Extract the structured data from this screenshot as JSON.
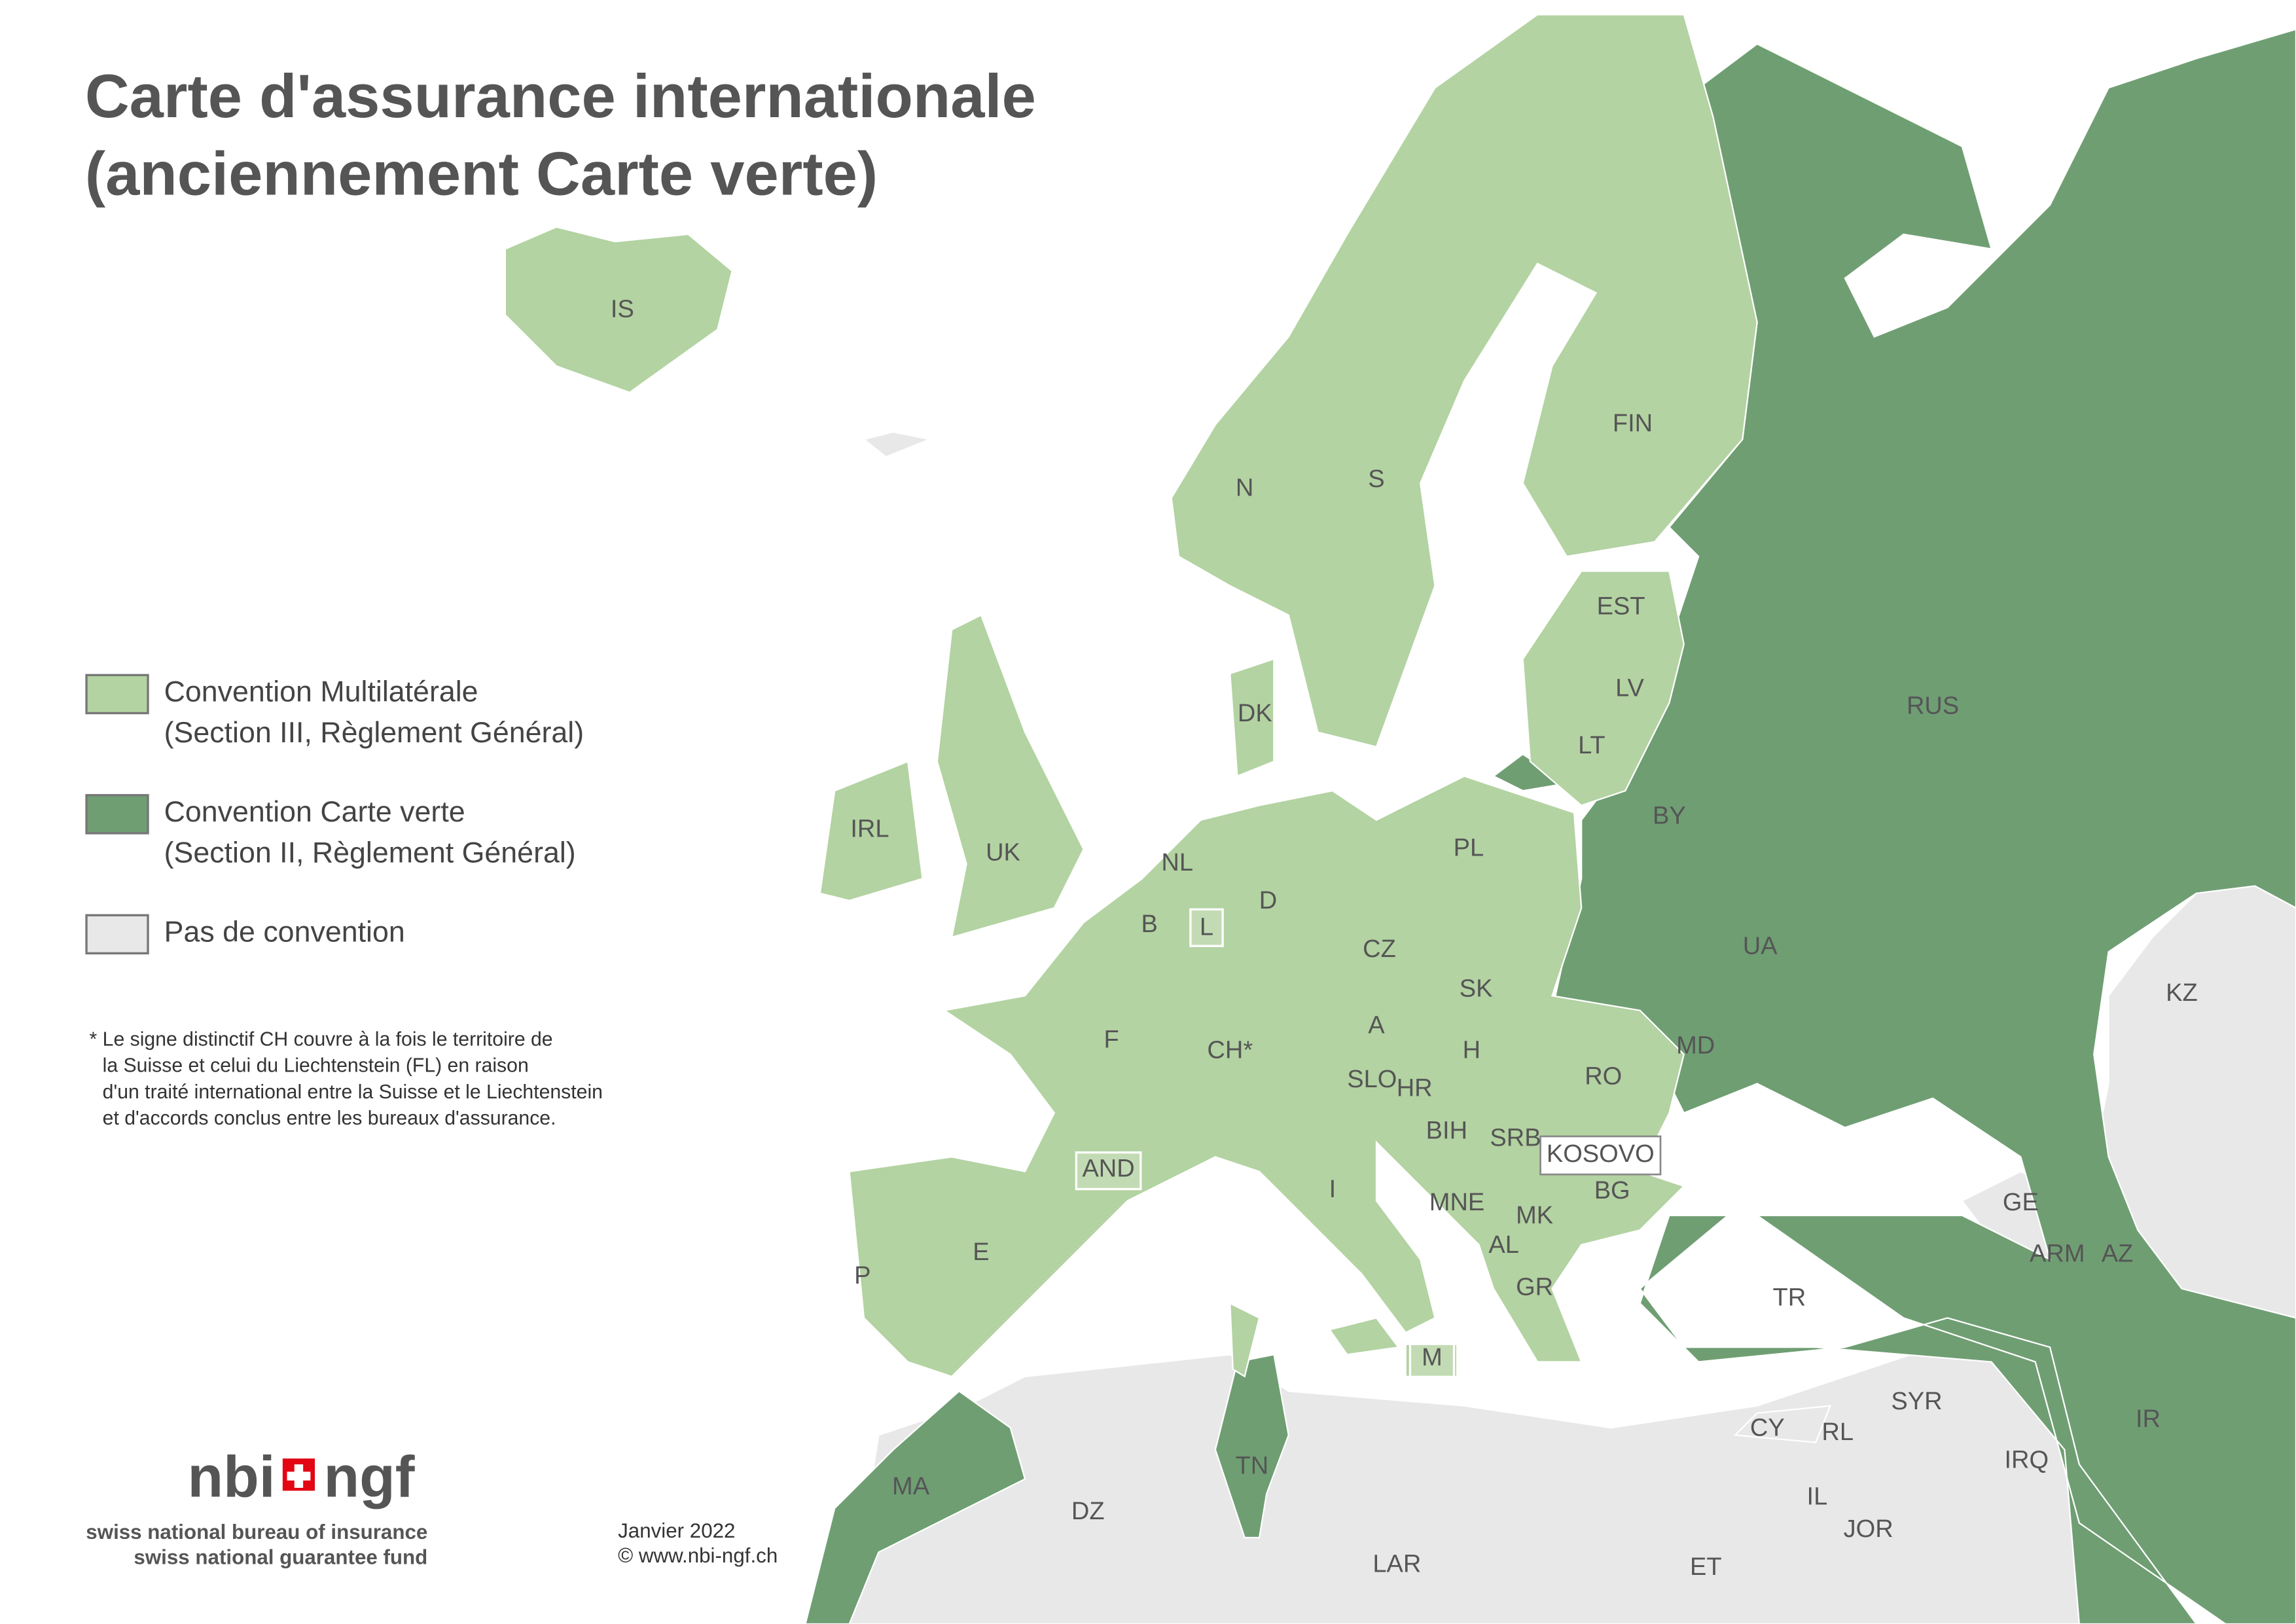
{
  "title": [
    "Carte d'assurance internationale",
    "(anciennement Carte verte)"
  ],
  "legend": [
    {
      "label": "Convention Multilatérale",
      "detail": "(Section III, Règlement Général)"
    },
    {
      "label": "Convention Carte verte",
      "detail": "(Section II, Règlement Général)"
    },
    {
      "label": "Pas de convention"
    }
  ],
  "footnote": [
    "* Le signe distinctif CH couvre à la fois le territoire de",
    "la Suisse et celui du Liechtenstein (FL) en raison",
    "d'un traité international entre la Suisse et le Liechtenstein",
    "et d'accords conclus entre les bureaux d'assurance."
  ],
  "logo": {
    "left": "nbi",
    "right": "ngf",
    "lines": [
      "swiss national bureau of insurance",
      "swiss national guarantee fund"
    ]
  },
  "date": "Janvier 2022",
  "website": "© www.nbi-ngf.ch",
  "countries": [
    "IS",
    "N",
    "S",
    "FIN",
    "EST",
    "LV",
    "LT",
    "DK",
    "IRL",
    "UK",
    "NL",
    "B",
    "L",
    "D",
    "PL",
    "BY",
    "RUS",
    "UA",
    "KZ",
    "CZ",
    "SK",
    "A",
    "H",
    "F",
    "CH*",
    "SLO",
    "HR",
    "RO",
    "MD",
    "BIH",
    "SRB",
    "KOSOVO",
    "AND",
    "MNE",
    "MK",
    "BG",
    "AL",
    "GE",
    "ARM",
    "AZ",
    "GR",
    "TR",
    "I",
    "E",
    "P",
    "M",
    "IR",
    "SYR",
    "CY",
    "RL",
    "IRQ",
    "IL",
    "JOR",
    "DZ",
    "MA",
    "TN",
    "LAR",
    "ET"
  ]
}
